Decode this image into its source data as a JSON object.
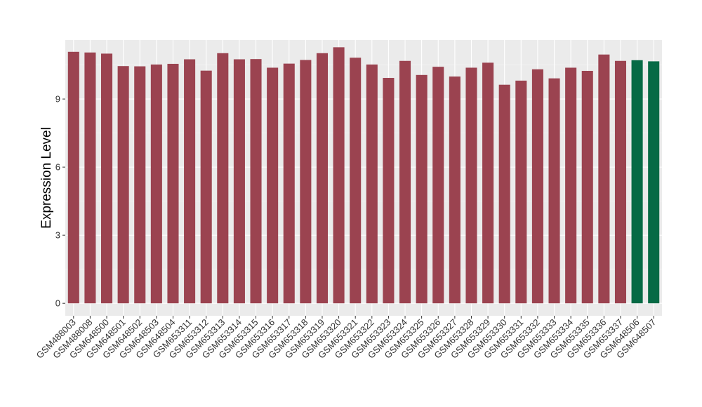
{
  "chart_data": {
    "type": "bar",
    "title": "",
    "xlabel": "",
    "ylabel": "Expression Level",
    "ylim": [
      -0.55,
      11.6
    ],
    "yticks": [
      0,
      3,
      6,
      9
    ],
    "grid": true,
    "legend": "none",
    "colors": {
      "panel_background": "#ebebeb",
      "grid_major": "#ffffff",
      "grid_minor": "#f5f5f5",
      "bar_default": "#9b4350",
      "bar_highlight": "#066a45",
      "axis_text": "#333333"
    },
    "categories": [
      "GSM488003",
      "GSM488008",
      "GSM648500",
      "GSM648501",
      "GSM648502",
      "GSM648503",
      "GSM648504",
      "GSM653311",
      "GSM653312",
      "GSM653313",
      "GSM653314",
      "GSM653315",
      "GSM653316",
      "GSM653317",
      "GSM653318",
      "GSM653319",
      "GSM653320",
      "GSM653321",
      "GSM653322",
      "GSM653323",
      "GSM653324",
      "GSM653325",
      "GSM653326",
      "GSM653327",
      "GSM653328",
      "GSM653329",
      "GSM653330",
      "GSM653331",
      "GSM653332",
      "GSM653333",
      "GSM653334",
      "GSM653335",
      "GSM653336",
      "GSM653337",
      "GSM648506",
      "GSM648507"
    ],
    "values": [
      11.08,
      11.05,
      11.0,
      10.45,
      10.44,
      10.52,
      10.55,
      10.75,
      10.25,
      11.02,
      10.75,
      10.76,
      10.38,
      10.56,
      10.72,
      11.02,
      11.28,
      10.82,
      10.52,
      9.93,
      10.68,
      10.06,
      10.42,
      9.99,
      10.38,
      10.6,
      9.63,
      9.81,
      10.31,
      9.91,
      10.38,
      10.24,
      10.96,
      10.68,
      10.71,
      10.66
    ],
    "highlight": [
      false,
      false,
      false,
      false,
      false,
      false,
      false,
      false,
      false,
      false,
      false,
      false,
      false,
      false,
      false,
      false,
      false,
      false,
      false,
      false,
      false,
      false,
      false,
      false,
      false,
      false,
      false,
      false,
      false,
      false,
      false,
      false,
      false,
      false,
      true,
      true
    ]
  }
}
